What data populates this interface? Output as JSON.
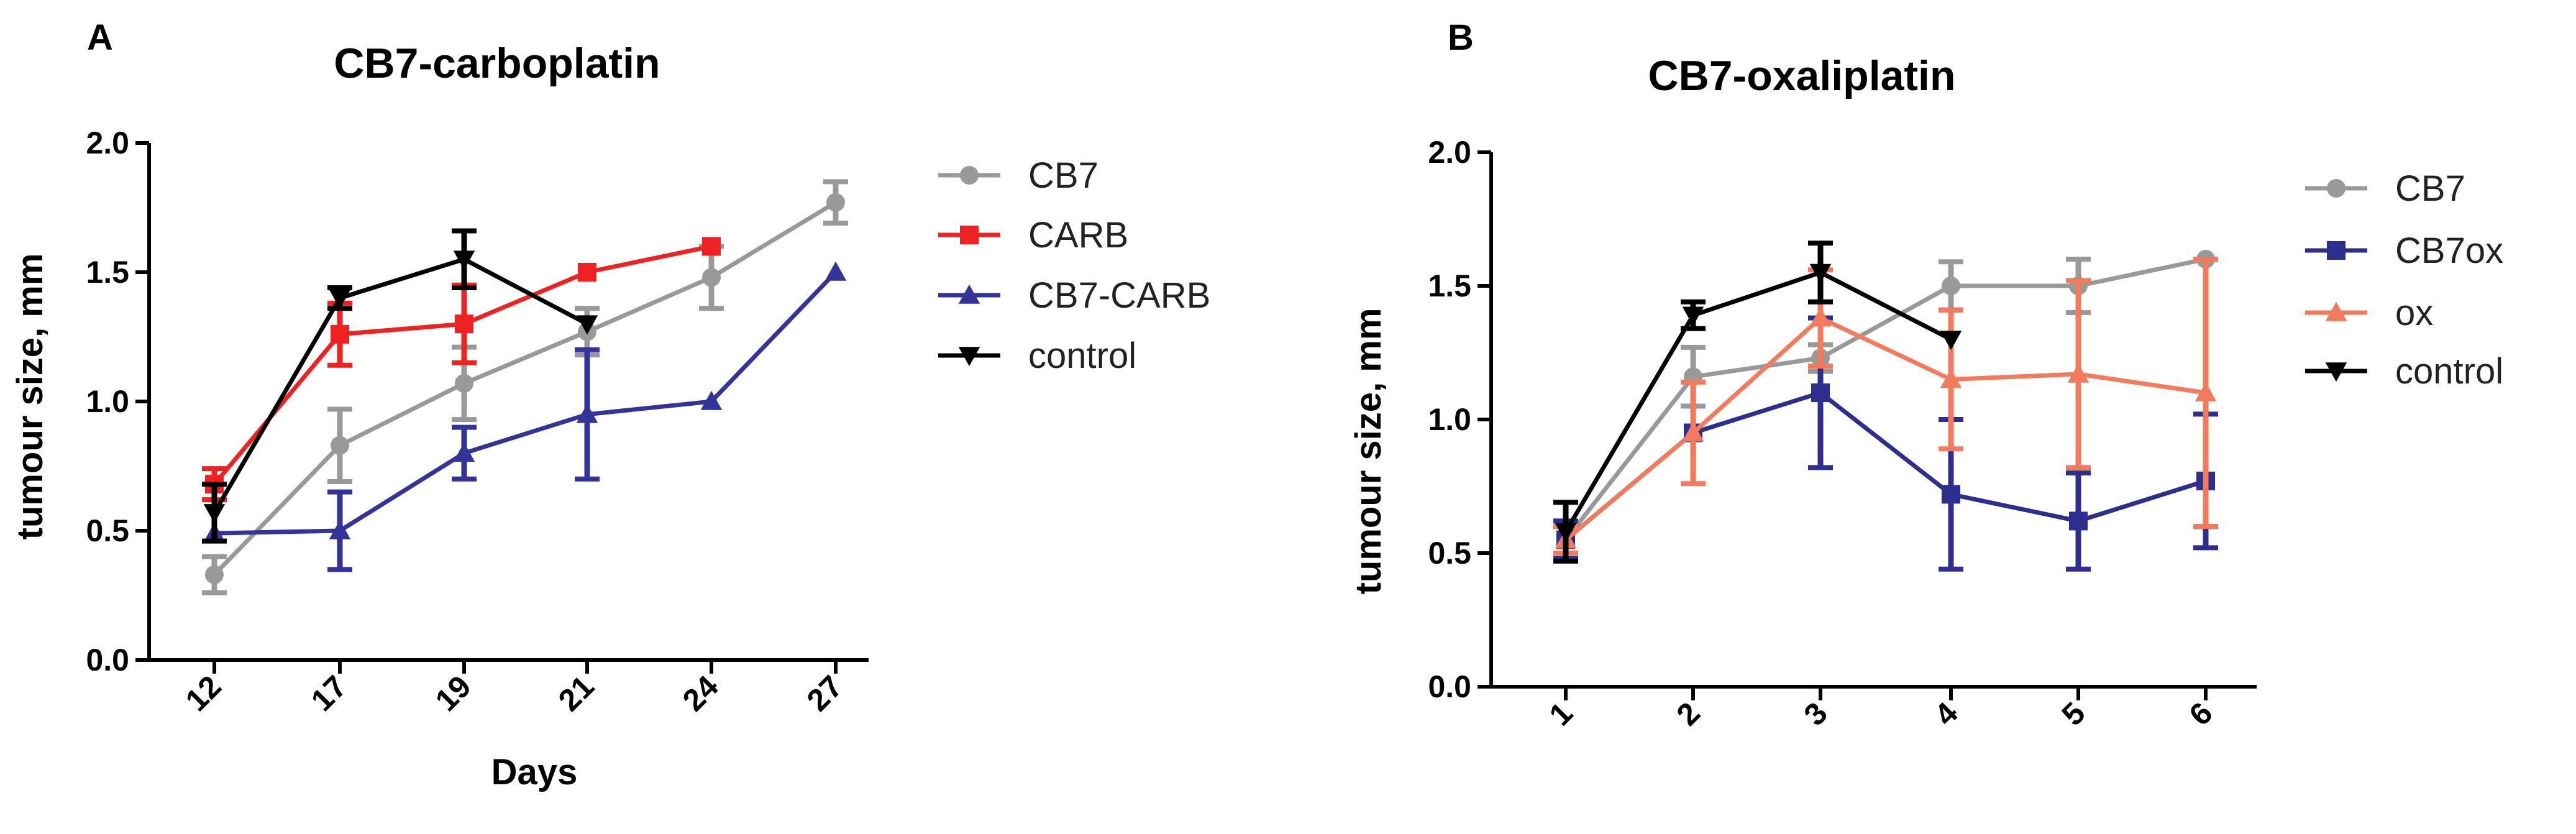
{
  "chart_data": [
    {
      "panel": "A",
      "type": "line",
      "title": "CB7-carboplatin",
      "xlabel": "Days",
      "ylabel": "tumour size, mm",
      "categories": [
        "12",
        "17",
        "19",
        "21",
        "24",
        "27"
      ],
      "ylim": [
        0,
        2
      ],
      "yticks": [
        "0.0",
        "0.5",
        "1.0",
        "1.5",
        "2.0"
      ],
      "legend_position": "right",
      "series": [
        {
          "name": "CB7",
          "color": "#999999",
          "marker": "circle",
          "values": [
            0.33,
            0.83,
            1.07,
            1.27,
            1.48,
            1.77
          ],
          "errors": [
            0.07,
            0.14,
            0.14,
            0.09,
            0.12,
            0.08
          ]
        },
        {
          "name": "CARB",
          "color": "#ee2222",
          "marker": "square",
          "values": [
            0.68,
            1.26,
            1.3,
            1.5,
            1.6,
            null
          ],
          "errors": [
            0.06,
            0.12,
            0.15,
            0.0,
            0.0,
            null
          ]
        },
        {
          "name": "CB7-CARB",
          "color": "#33339a",
          "marker": "triangle-up",
          "values": [
            0.49,
            0.5,
            0.8,
            0.95,
            1.0,
            1.5
          ],
          "errors": [
            0.0,
            0.15,
            0.1,
            0.25,
            0.0,
            0.0
          ]
        },
        {
          "name": "control",
          "color": "#000000",
          "marker": "triangle-down",
          "values": [
            0.57,
            1.4,
            1.55,
            1.3,
            null,
            null
          ],
          "errors": [
            0.11,
            0.04,
            0.11,
            0.0,
            null,
            null
          ]
        }
      ]
    },
    {
      "panel": "B",
      "type": "line",
      "title": "CB7-oxaliplatin",
      "xlabel": "",
      "ylabel": "tumour size, mm",
      "categories": [
        "1",
        "2",
        "3",
        "4",
        "5",
        "6"
      ],
      "ylim": [
        0,
        2
      ],
      "yticks": [
        "0.0",
        "0.5",
        "1.0",
        "1.5",
        "2.0"
      ],
      "legend_position": "right",
      "series": [
        {
          "name": "CB7",
          "color": "#999999",
          "marker": "circle",
          "values": [
            0.55,
            1.16,
            1.23,
            1.5,
            1.5,
            1.6
          ],
          "errors": [
            0.05,
            0.11,
            0.05,
            0.09,
            0.1,
            0.0
          ]
        },
        {
          "name": "CB7ox",
          "color": "#2e2e8f",
          "marker": "square",
          "values": [
            0.55,
            0.95,
            1.1,
            0.72,
            0.62,
            0.77
          ],
          "errors": [
            0.07,
            0.0,
            0.28,
            0.28,
            0.18,
            0.25
          ]
        },
        {
          "name": "ox",
          "color": "#f47a5e",
          "marker": "triangle-up",
          "values": [
            0.55,
            0.95,
            1.38,
            1.15,
            1.17,
            1.1
          ],
          "errors": [
            0.05,
            0.19,
            0.18,
            0.26,
            0.35,
            0.5
          ]
        },
        {
          "name": "control",
          "color": "#000000",
          "marker": "triangle-down",
          "values": [
            0.58,
            1.39,
            1.55,
            1.3,
            null,
            null
          ],
          "errors": [
            0.11,
            0.05,
            0.11,
            0.0,
            null,
            null
          ]
        }
      ]
    }
  ]
}
